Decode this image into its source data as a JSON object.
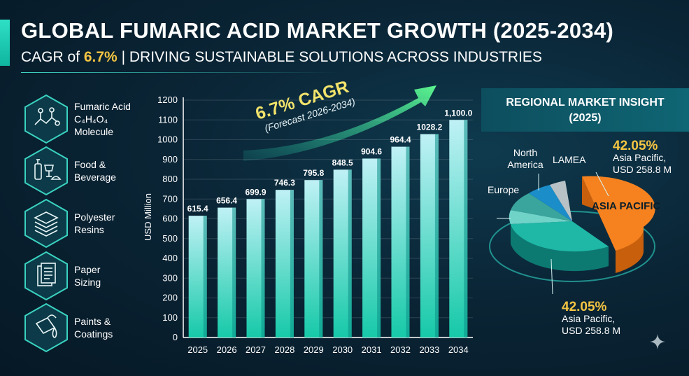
{
  "header": {
    "title": "GLOBAL FUMARIC ACID MARKET GROWTH (2025-2034)",
    "subtitle_prefix": "CAGR of ",
    "subtitle_highlight": "6.7%",
    "subtitle_suffix": " | DRIVING SUSTAINABLE SOLUTIONS ACROSS INDUSTRIES"
  },
  "applications": [
    {
      "label_line1": "Fumaric Acid",
      "label_line2": "C₄H₄O₄",
      "label_line3": "Molecule",
      "icon": "molecule-icon"
    },
    {
      "label_line1": "Food &",
      "label_line2": "Beverage",
      "icon": "food-beverage-icon"
    },
    {
      "label_line1": "Polyester",
      "label_line2": "Resins",
      "icon": "layers-icon"
    },
    {
      "label_line1": "Paper",
      "label_line2": "Sizing",
      "icon": "paper-icon"
    },
    {
      "label_line1": "Paints &",
      "label_line2": "Coatings",
      "icon": "paint-bucket-icon"
    }
  ],
  "cagr_callout": {
    "main": "6.7% CAGR",
    "sub": "(Forecast 2026-2034)"
  },
  "chart_data": {
    "type": "bar",
    "categories": [
      "2025",
      "2026",
      "2027",
      "2028",
      "2029",
      "2030",
      "2031",
      "2032",
      "2033",
      "2034"
    ],
    "values": [
      615.4,
      656.4,
      699.9,
      746.3,
      795.8,
      848.5,
      904.6,
      964.4,
      1028.2,
      1100.0
    ],
    "value_labels": [
      "615.4",
      "656.4",
      "699.9",
      "746.3",
      "795.8",
      "848.5",
      "904.6",
      "964.4",
      "1028.2",
      "1,100.0"
    ],
    "ylabel": "USD Million",
    "ylim": [
      0,
      1200
    ],
    "yticks": [
      "0",
      "100",
      "200",
      "300",
      "400",
      "500",
      "600",
      "700",
      "800",
      "900",
      "1000",
      "1100",
      "1200"
    ],
    "colors": {
      "bar_top": "#bff1f6",
      "bar_bottom": "#16c9a8"
    }
  },
  "regional": {
    "title": "REGIONAL MARKET INSIGHT",
    "year": "(2025)",
    "slice_label": "ASIA PACIFIC",
    "labels": {
      "north_america": "North America",
      "lamea": "LAMEA",
      "europe": "Europe"
    },
    "top_callout": {
      "pct": "42.05%",
      "line1": "Asia Pacific,",
      "line2": "USD 258.8 M"
    },
    "bottom_callout": {
      "pct": "42.05%",
      "line1": "Asia Pacific,",
      "line2": "USD 258.8 M"
    },
    "colors": {
      "asia_pacific": "#f5821f",
      "teal": "#1fb8a6",
      "accent": "#f5c542"
    }
  }
}
